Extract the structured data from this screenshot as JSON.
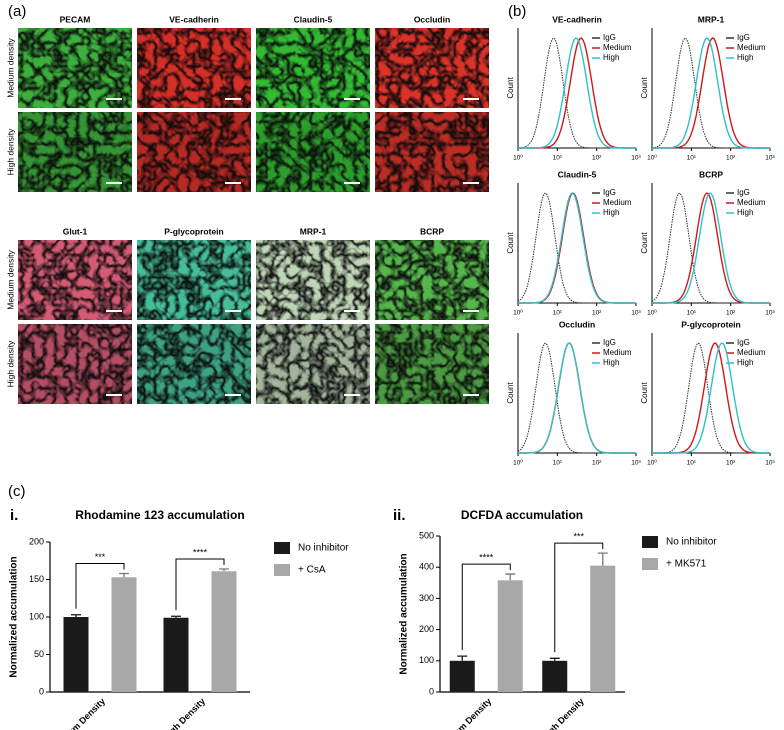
{
  "panel_a": {
    "label": "(a)",
    "row_labels": [
      "Medium density",
      "High density"
    ],
    "grids": [
      {
        "columns": [
          {
            "name": "PECAM",
            "color": "#3fb83f"
          },
          {
            "name": "VE-cadherin",
            "color": "#e0302a"
          },
          {
            "name": "Claudin-5",
            "color": "#36c436"
          },
          {
            "name": "Occludin",
            "color": "#e8352c"
          }
        ]
      },
      {
        "columns": [
          {
            "name": "Glut-1",
            "color": "#e0607a"
          },
          {
            "name": "P-glycoprotein",
            "color": "#48c8a0"
          },
          {
            "name": "MRP-1",
            "color": "#c8e0c0"
          },
          {
            "name": "BCRP",
            "color": "#5ac050"
          }
        ]
      }
    ]
  },
  "panel_b": {
    "label": "(b)",
    "y_label": "Count",
    "log_x": true,
    "xlim": [
      1,
      1000
    ],
    "xticks": [
      {
        "value": 1,
        "label": "10⁰"
      },
      {
        "value": 10,
        "label": "10¹"
      },
      {
        "value": 100,
        "label": "10²"
      },
      {
        "value": 1000,
        "label": "10³"
      }
    ],
    "plots": [
      {
        "title": "VE-cadherin",
        "series": [
          {
            "name": "IgG",
            "color": "#333333",
            "peak": 8
          },
          {
            "name": "Medium",
            "color": "#d01818",
            "peak": 40
          },
          {
            "name": "High",
            "color": "#30c0c8",
            "peak": 30
          }
        ]
      },
      {
        "title": "MRP-1",
        "series": [
          {
            "name": "IgG",
            "color": "#333333",
            "peak": 7
          },
          {
            "name": "Medium",
            "color": "#d01818",
            "peak": 35
          },
          {
            "name": "High",
            "color": "#30c0c8",
            "peak": 25
          }
        ]
      },
      {
        "title": "Claudin-5",
        "series": [
          {
            "name": "IgG",
            "color": "#333333",
            "peak": 5
          },
          {
            "name": "Medium",
            "color": "#d01818",
            "peak": 25
          },
          {
            "name": "High",
            "color": "#30c0c8",
            "peak": 24
          }
        ]
      },
      {
        "title": "BCRP",
        "series": [
          {
            "name": "IgG",
            "color": "#333333",
            "peak": 5
          },
          {
            "name": "Medium",
            "color": "#d01818",
            "peak": 25
          },
          {
            "name": "High",
            "color": "#30c0c8",
            "peak": 30
          }
        ]
      },
      {
        "title": "Occludin",
        "series": [
          {
            "name": "IgG",
            "color": "#333333",
            "peak": 5
          },
          {
            "name": "Medium",
            "color": "#d01818",
            "peak": 20
          },
          {
            "name": "High",
            "color": "#30c0c8",
            "peak": 20
          }
        ]
      },
      {
        "title": "P-glycoprotein",
        "series": [
          {
            "name": "IgG",
            "color": "#333333",
            "peak": 15
          },
          {
            "name": "Medium",
            "color": "#d01818",
            "peak": 40
          },
          {
            "name": "High",
            "color": "#30c0c8",
            "peak": 60
          }
        ]
      }
    ]
  },
  "panel_c": {
    "label": "(c)"
  },
  "chart_data": [
    {
      "type": "bar",
      "label": "i.",
      "title": "Rhodamine 123 accumulation",
      "y_label": "Normalized accumulation",
      "categories": [
        "Medium Density",
        "High Density"
      ],
      "series": [
        {
          "name": "No inhibitor",
          "color": "#1a1a1a",
          "values": [
            100,
            99
          ],
          "errors": [
            3,
            2
          ]
        },
        {
          "name": "+ CsA",
          "color": "#a8a8a8",
          "values": [
            153,
            161
          ],
          "errors": [
            5,
            3
          ]
        }
      ],
      "annotations": [
        "***",
        "****"
      ],
      "ylim": [
        0,
        200
      ],
      "yticks": [
        0,
        50,
        100,
        150,
        200
      ],
      "legend": "right"
    },
    {
      "type": "bar",
      "label": "ii.",
      "title": "DCFDA accumulation",
      "y_label": "Normalized accumulation",
      "categories": [
        "Medium Density",
        "High Density"
      ],
      "series": [
        {
          "name": "No inhibitor",
          "color": "#1a1a1a",
          "values": [
            100,
            100
          ],
          "errors": [
            15,
            8
          ]
        },
        {
          "name": "+ MK571",
          "color": "#a8a8a8",
          "values": [
            358,
            405
          ],
          "errors": [
            20,
            40
          ]
        }
      ],
      "annotations": [
        "****",
        "***"
      ],
      "ylim": [
        0,
        500
      ],
      "yticks": [
        0,
        100,
        200,
        300,
        400,
        500
      ],
      "legend": "right"
    }
  ]
}
